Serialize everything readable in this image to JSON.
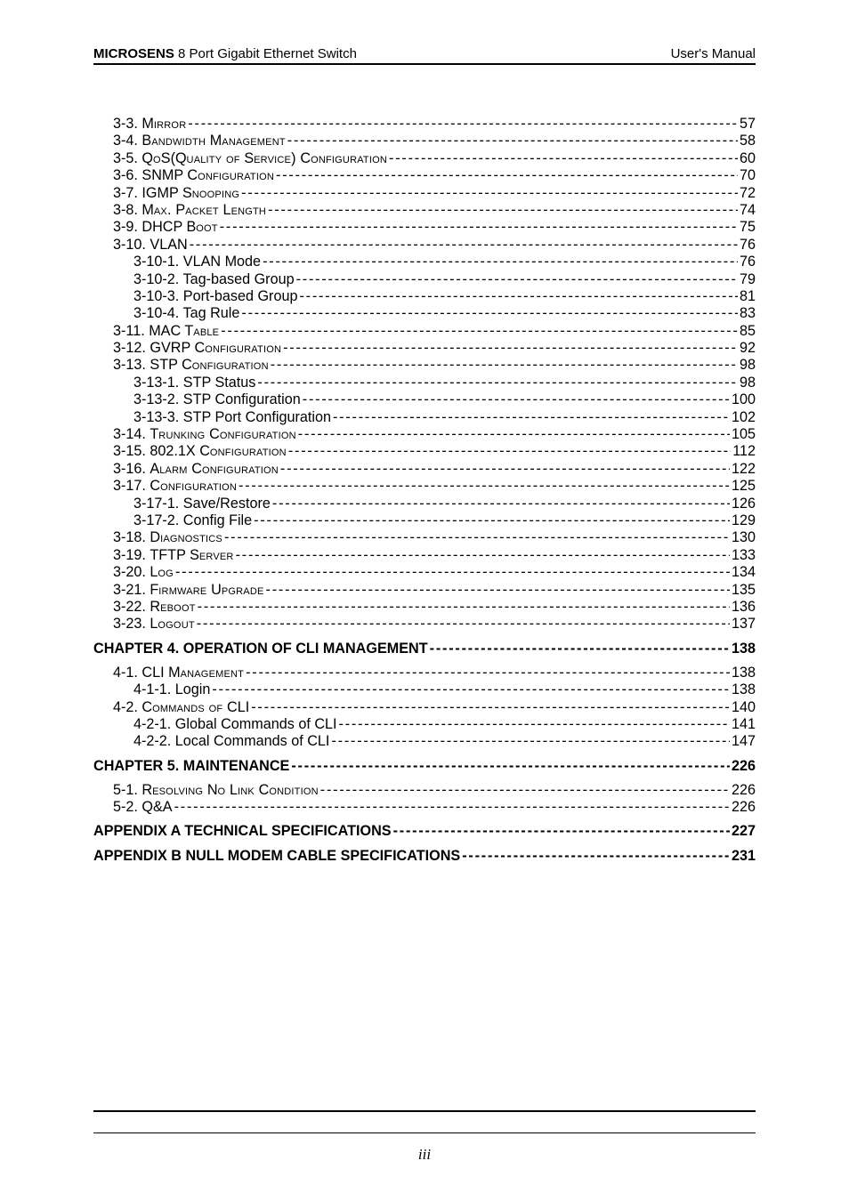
{
  "header": {
    "brand": "MICROSENS",
    "product": " 8 Port Gigabit Ethernet Switch",
    "right": "User's Manual"
  },
  "footer": {
    "pageNumber": "iii"
  },
  "toc": [
    {
      "level": 1,
      "label_num": "3-3. ",
      "label_caps": "M",
      "label_rest": "irror",
      "page": "57"
    },
    {
      "level": 1,
      "label_num": "3-4. ",
      "label_caps": "B",
      "label_rest": "andwidth ",
      "label_caps2": "M",
      "label_rest2": "anagement",
      "page": "58"
    },
    {
      "level": 1,
      "label_num": "3-5. ",
      "label_caps": "Q",
      "label_rest": "o",
      "label_caps2": "S(Q",
      "label_rest2": "uality of ",
      "label_caps3": "S",
      "label_rest3": "ervice) ",
      "label_caps4": "C",
      "label_rest4": "onfiguration ",
      "page": "60"
    },
    {
      "level": 1,
      "label_num": "3-6. ",
      "label_caps": "SNMP C",
      "label_rest": "onfiguration",
      "page": "70"
    },
    {
      "level": 1,
      "label_num": "3-7. ",
      "label_caps": "IGMP S",
      "label_rest": "nooping",
      "page": "72"
    },
    {
      "level": 1,
      "label_num": "3-8. ",
      "label_caps": "M",
      "label_rest": "ax. ",
      "label_caps2": "P",
      "label_rest2": "acket ",
      "label_caps3": "L",
      "label_rest3": "ength ",
      "page": "74"
    },
    {
      "level": 1,
      "label_num": "3-9. ",
      "label_caps": "DHCP B",
      "label_rest": "oot",
      "page": "75"
    },
    {
      "level": 1,
      "label_num": "3-10. ",
      "label_caps": "VLAN ",
      "label_rest": "",
      "page": "76"
    },
    {
      "level": 2,
      "label": "3-10-1. VLAN Mode ",
      "page": "76"
    },
    {
      "level": 2,
      "label": "3-10-2. Tag-based Group ",
      "page": "79"
    },
    {
      "level": 2,
      "label": "3-10-3. Port-based Group ",
      "page": "81"
    },
    {
      "level": 2,
      "label": "3-10-4. Tag Rule ",
      "page": "83"
    },
    {
      "level": 1,
      "label_num": "3-11. ",
      "label_caps": "MAC T",
      "label_rest": "able",
      "page": "85"
    },
    {
      "level": 1,
      "label_num": "3-12. ",
      "label_caps": "GVRP C",
      "label_rest": "onfiguration",
      "page": "92"
    },
    {
      "level": 1,
      "label_num": "3-13. ",
      "label_caps": "STP C",
      "label_rest": "onfiguration",
      "page": "98"
    },
    {
      "level": 2,
      "label": "3-13-1. STP Status",
      "page": "98"
    },
    {
      "level": 2,
      "label": "3-13-2. STP Configuration",
      "page": " 100"
    },
    {
      "level": 2,
      "label": "3-13-3. STP Port Configuration ",
      "page": " 102"
    },
    {
      "level": 1,
      "label_num": "3-14. ",
      "label_caps": "T",
      "label_rest": "runking ",
      "label_caps2": "C",
      "label_rest2": "onfiguration",
      "page": " 105"
    },
    {
      "level": 1,
      "label_num": "3-15. ",
      "label_caps": "802.1X C",
      "label_rest": "onfiguration",
      "page": " 112"
    },
    {
      "level": 1,
      "label_num": "3-16. ",
      "label_caps": "A",
      "label_rest": "larm ",
      "label_caps2": "C",
      "label_rest2": "onfiguration",
      "page": " 122"
    },
    {
      "level": 1,
      "label_num": "3-17. ",
      "label_caps": "C",
      "label_rest": "onfiguration ",
      "page": " 125"
    },
    {
      "level": 2,
      "label": "3-17-1. Save/Restore ",
      "page": " 126"
    },
    {
      "level": 2,
      "label": "3-17-2. Config File ",
      "page": " 129"
    },
    {
      "level": 1,
      "label_num": "3-18. ",
      "label_caps": "D",
      "label_rest": "iagnostics",
      "page": " 130"
    },
    {
      "level": 1,
      "label_num": "3-19. ",
      "label_caps": "TFTP S",
      "label_rest": "erver",
      "page": " 133"
    },
    {
      "level": 1,
      "label_num": "3-20. ",
      "label_caps": "L",
      "label_rest": "og",
      "page": " 134"
    },
    {
      "level": 1,
      "label_num": "3-21. ",
      "label_caps": "F",
      "label_rest": "irmware ",
      "label_caps2": "U",
      "label_rest2": "pgrade",
      "page": " 135"
    },
    {
      "level": 1,
      "label_num": "3-22. ",
      "label_caps": "R",
      "label_rest": "eboot ",
      "page": " 136"
    },
    {
      "level": 1,
      "label_num": "3-23. ",
      "label_caps": "L",
      "label_rest": "ogout",
      "page": " 137"
    },
    {
      "level": 0,
      "label": "CHAPTER  4.  OPERATION OF CLI MANAGEMENT",
      "page": " 138"
    },
    {
      "level": 1,
      "label_num": "4-1. ",
      "label_caps": "CLI M",
      "label_rest": "anagement",
      "page": " 138"
    },
    {
      "level": 2,
      "label": "4-1-1. Login",
      "page": " 138"
    },
    {
      "level": 1,
      "label_num": "4-2. ",
      "label_caps": "C",
      "label_rest": "ommands of ",
      "label_caps2": "CLI",
      "label_rest2": "",
      "page": " 140"
    },
    {
      "level": 2,
      "label": "4-2-1. Global Commands of CLI ",
      "page": " 141"
    },
    {
      "level": 2,
      "label": "4-2-2. Local Commands of CLI ",
      "page": " 147"
    },
    {
      "level": 0,
      "label": "CHAPTER  5.  MAINTENANCE",
      "page": " 226"
    },
    {
      "level": 1,
      "label_num": "5-1. ",
      "label_caps": "R",
      "label_rest": "esolving ",
      "label_caps2": "N",
      "label_rest2": "o ",
      "label_caps3": "L",
      "label_rest3": "ink ",
      "label_caps4": "C",
      "label_rest4": "ondition ",
      "page": " 226"
    },
    {
      "level": 1,
      "label_num": "5-2. ",
      "label_caps": "Q&A",
      "label_rest": "",
      "page": " 226"
    },
    {
      "level": 0,
      "label": "APPENDIX A  TECHNICAL SPECIFICATIONS",
      "page": " 227"
    },
    {
      "level": 0,
      "label": "APPENDIX B  NULL MODEM CABLE SPECIFICATIONS ",
      "page": " 231"
    }
  ]
}
